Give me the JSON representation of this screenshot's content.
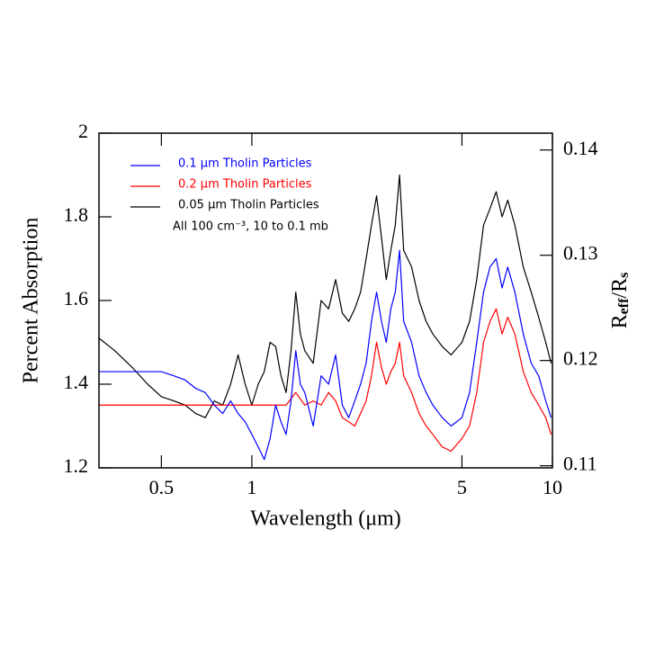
{
  "chart_data": {
    "type": "line",
    "xlabel": "Wavelength (μm)",
    "ylabel": "Percent Absorption",
    "y2label": [
      "R",
      "eff",
      "/R",
      "s"
    ],
    "annotation": "All 100 cm⁻³, 10 to 0.1 mb",
    "xscale": "log",
    "xlim": [
      0.31,
      10
    ],
    "xticks": [
      0.5,
      1,
      5,
      10
    ],
    "ylim": [
      1.2,
      2
    ],
    "yticks": [
      1.2,
      1.4,
      1.6,
      1.8,
      2
    ],
    "y2lim": [
      0.1098,
      0.1416
    ],
    "y2ticks": [
      0.11,
      0.12,
      0.13,
      0.14
    ],
    "series": [
      {
        "name": "0.1 μm Tholin Particles",
        "color": "#0000ff",
        "x": [
          0.31,
          0.4,
          0.5,
          0.55,
          0.6,
          0.65,
          0.7,
          0.75,
          0.8,
          0.85,
          0.9,
          0.95,
          1.0,
          1.05,
          1.1,
          1.15,
          1.2,
          1.25,
          1.3,
          1.35,
          1.4,
          1.45,
          1.5,
          1.6,
          1.7,
          1.8,
          1.9,
          2.0,
          2.1,
          2.2,
          2.3,
          2.4,
          2.5,
          2.6,
          2.7,
          2.8,
          2.9,
          3.0,
          3.1,
          3.2,
          3.4,
          3.6,
          3.8,
          4.0,
          4.3,
          4.6,
          5.0,
          5.3,
          5.6,
          5.9,
          6.2,
          6.5,
          6.8,
          7.1,
          7.5,
          8.0,
          8.5,
          9.0,
          9.5,
          9.9
        ],
        "values": [
          1.43,
          1.43,
          1.43,
          1.42,
          1.41,
          1.39,
          1.38,
          1.35,
          1.33,
          1.36,
          1.33,
          1.31,
          1.28,
          1.25,
          1.22,
          1.27,
          1.35,
          1.31,
          1.28,
          1.36,
          1.48,
          1.4,
          1.38,
          1.3,
          1.42,
          1.4,
          1.47,
          1.35,
          1.32,
          1.36,
          1.4,
          1.45,
          1.55,
          1.62,
          1.55,
          1.5,
          1.58,
          1.62,
          1.72,
          1.55,
          1.5,
          1.42,
          1.38,
          1.35,
          1.32,
          1.3,
          1.32,
          1.38,
          1.5,
          1.62,
          1.68,
          1.7,
          1.63,
          1.68,
          1.62,
          1.52,
          1.45,
          1.42,
          1.36,
          1.32
        ]
      },
      {
        "name": "0.2 μm Tholin Particles",
        "color": "#ff0000",
        "x": [
          0.31,
          0.5,
          0.8,
          1.0,
          1.2,
          1.3,
          1.4,
          1.5,
          1.6,
          1.7,
          1.8,
          1.9,
          2.0,
          2.1,
          2.2,
          2.3,
          2.4,
          2.5,
          2.6,
          2.7,
          2.8,
          2.9,
          3.0,
          3.1,
          3.2,
          3.4,
          3.6,
          3.8,
          4.0,
          4.3,
          4.6,
          5.0,
          5.3,
          5.6,
          5.9,
          6.2,
          6.5,
          6.8,
          7.1,
          7.5,
          8.0,
          8.5,
          9.0,
          9.5,
          9.9
        ],
        "values": [
          1.35,
          1.35,
          1.35,
          1.35,
          1.35,
          1.35,
          1.38,
          1.35,
          1.36,
          1.35,
          1.38,
          1.36,
          1.32,
          1.31,
          1.3,
          1.33,
          1.36,
          1.42,
          1.5,
          1.44,
          1.4,
          1.43,
          1.45,
          1.5,
          1.42,
          1.38,
          1.33,
          1.3,
          1.28,
          1.25,
          1.24,
          1.27,
          1.3,
          1.38,
          1.5,
          1.55,
          1.58,
          1.52,
          1.56,
          1.52,
          1.43,
          1.38,
          1.35,
          1.32,
          1.28
        ]
      },
      {
        "name": "0.05 μm Tholin Particles",
        "color": "#000000",
        "x": [
          0.31,
          0.35,
          0.4,
          0.45,
          0.5,
          0.55,
          0.6,
          0.65,
          0.7,
          0.75,
          0.8,
          0.85,
          0.9,
          0.95,
          1.0,
          1.05,
          1.1,
          1.15,
          1.2,
          1.25,
          1.3,
          1.35,
          1.4,
          1.45,
          1.5,
          1.6,
          1.7,
          1.8,
          1.9,
          2.0,
          2.1,
          2.2,
          2.3,
          2.4,
          2.5,
          2.6,
          2.7,
          2.8,
          2.9,
          3.0,
          3.1,
          3.2,
          3.4,
          3.6,
          3.8,
          4.0,
          4.3,
          4.6,
          5.0,
          5.3,
          5.6,
          5.9,
          6.2,
          6.5,
          6.8,
          7.1,
          7.5,
          8.0,
          8.5,
          9.0,
          9.5,
          9.9
        ],
        "values": [
          1.51,
          1.48,
          1.44,
          1.4,
          1.37,
          1.36,
          1.35,
          1.33,
          1.32,
          1.36,
          1.35,
          1.4,
          1.47,
          1.4,
          1.35,
          1.4,
          1.43,
          1.5,
          1.49,
          1.42,
          1.38,
          1.48,
          1.62,
          1.52,
          1.48,
          1.45,
          1.6,
          1.58,
          1.65,
          1.57,
          1.55,
          1.58,
          1.62,
          1.7,
          1.78,
          1.85,
          1.75,
          1.65,
          1.72,
          1.78,
          1.9,
          1.72,
          1.68,
          1.6,
          1.55,
          1.52,
          1.49,
          1.47,
          1.5,
          1.55,
          1.65,
          1.78,
          1.82,
          1.86,
          1.8,
          1.84,
          1.78,
          1.68,
          1.62,
          1.56,
          1.5,
          1.45
        ]
      }
    ]
  }
}
